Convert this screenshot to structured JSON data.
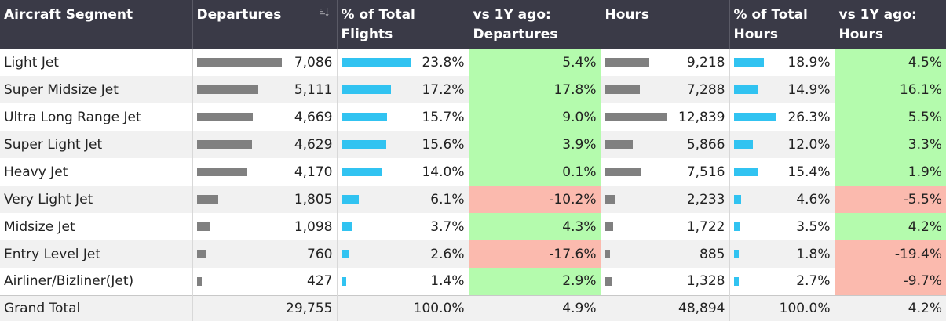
{
  "chart_data": {
    "type": "table",
    "columns": [
      "Aircraft Segment",
      "Departures",
      "% of Total Flights",
      "vs 1Y ago: Departures",
      "Hours",
      "% of Total Hours",
      "vs 1Y ago: Hours"
    ],
    "rows": [
      {
        "segment": "Light Jet",
        "departures": "7,086",
        "departures_value": 7086,
        "pct_flights": "23.8%",
        "pct_flights_value": 23.8,
        "dep_change": "5.4%",
        "dep_change_value": 5.4,
        "hours": "9,218",
        "hours_value": 9218,
        "pct_hours": "18.9%",
        "pct_hours_value": 18.9,
        "hours_change": "4.5%",
        "hours_change_value": 4.5
      },
      {
        "segment": "Super Midsize Jet",
        "departures": "5,111",
        "departures_value": 5111,
        "pct_flights": "17.2%",
        "pct_flights_value": 17.2,
        "dep_change": "17.8%",
        "dep_change_value": 17.8,
        "hours": "7,288",
        "hours_value": 7288,
        "pct_hours": "14.9%",
        "pct_hours_value": 14.9,
        "hours_change": "16.1%",
        "hours_change_value": 16.1
      },
      {
        "segment": "Ultra Long Range Jet",
        "departures": "4,669",
        "departures_value": 4669,
        "pct_flights": "15.7%",
        "pct_flights_value": 15.7,
        "dep_change": "9.0%",
        "dep_change_value": 9.0,
        "hours": "12,839",
        "hours_value": 12839,
        "pct_hours": "26.3%",
        "pct_hours_value": 26.3,
        "hours_change": "5.5%",
        "hours_change_value": 5.5
      },
      {
        "segment": "Super Light Jet",
        "departures": "4,629",
        "departures_value": 4629,
        "pct_flights": "15.6%",
        "pct_flights_value": 15.6,
        "dep_change": "3.9%",
        "dep_change_value": 3.9,
        "hours": "5,866",
        "hours_value": 5866,
        "pct_hours": "12.0%",
        "pct_hours_value": 12.0,
        "hours_change": "3.3%",
        "hours_change_value": 3.3
      },
      {
        "segment": "Heavy Jet",
        "departures": "4,170",
        "departures_value": 4170,
        "pct_flights": "14.0%",
        "pct_flights_value": 14.0,
        "dep_change": "0.1%",
        "dep_change_value": 0.1,
        "hours": "7,516",
        "hours_value": 7516,
        "pct_hours": "15.4%",
        "pct_hours_value": 15.4,
        "hours_change": "1.9%",
        "hours_change_value": 1.9
      },
      {
        "segment": "Very Light Jet",
        "departures": "1,805",
        "departures_value": 1805,
        "pct_flights": "6.1%",
        "pct_flights_value": 6.1,
        "dep_change": "-10.2%",
        "dep_change_value": -10.2,
        "hours": "2,233",
        "hours_value": 2233,
        "pct_hours": "4.6%",
        "pct_hours_value": 4.6,
        "hours_change": "-5.5%",
        "hours_change_value": -5.5
      },
      {
        "segment": "Midsize Jet",
        "departures": "1,098",
        "departures_value": 1098,
        "pct_flights": "3.7%",
        "pct_flights_value": 3.7,
        "dep_change": "4.3%",
        "dep_change_value": 4.3,
        "hours": "1,722",
        "hours_value": 1722,
        "pct_hours": "3.5%",
        "pct_hours_value": 3.5,
        "hours_change": "4.2%",
        "hours_change_value": 4.2
      },
      {
        "segment": "Entry Level Jet",
        "departures": "760",
        "departures_value": 760,
        "pct_flights": "2.6%",
        "pct_flights_value": 2.6,
        "dep_change": "-17.6%",
        "dep_change_value": -17.6,
        "hours": "885",
        "hours_value": 885,
        "pct_hours": "1.8%",
        "pct_hours_value": 1.8,
        "hours_change": "-19.4%",
        "hours_change_value": -19.4
      },
      {
        "segment": "Airliner/Bizliner(Jet)",
        "departures": "427",
        "departures_value": 427,
        "pct_flights": "1.4%",
        "pct_flights_value": 1.4,
        "dep_change": "2.9%",
        "dep_change_value": 2.9,
        "hours": "1,328",
        "hours_value": 1328,
        "pct_hours": "2.7%",
        "pct_hours_value": 2.7,
        "hours_change": "-9.7%",
        "hours_change_value": -9.7
      }
    ],
    "total": {
      "segment": "Grand Total",
      "departures": "29,755",
      "pct_flights": "100.0%",
      "dep_change": "4.9%",
      "hours": "48,894",
      "pct_hours": "100.0%",
      "hours_change": "4.2%"
    }
  },
  "header": {
    "segment": "Aircraft Segment",
    "departures": "Departures",
    "pct_flights": "% of Total Flights",
    "dep_change": "vs 1Y ago: Departures",
    "hours": "Hours",
    "pct_hours": "% of Total Hours",
    "hours_change": "vs 1Y ago: Hours"
  },
  "icons": {
    "sort": "sort-descending-icon"
  },
  "colors": {
    "header_bg": "#3a3a47",
    "bar_gray": "#808080",
    "bar_blue": "#31c3f1",
    "positive": "#b4fbad",
    "negative": "#fbbaae"
  }
}
